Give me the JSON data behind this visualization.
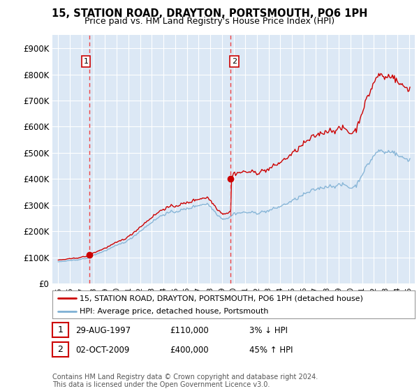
{
  "title": "15, STATION ROAD, DRAYTON, PORTSMOUTH, PO6 1PH",
  "subtitle": "Price paid vs. HM Land Registry's House Price Index (HPI)",
  "ylabel_ticks": [
    "£0",
    "£100K",
    "£200K",
    "£300K",
    "£400K",
    "£500K",
    "£600K",
    "£700K",
    "£800K",
    "£900K"
  ],
  "ytick_values": [
    0,
    100000,
    200000,
    300000,
    400000,
    500000,
    600000,
    700000,
    800000,
    900000
  ],
  "ylim": [
    0,
    950000
  ],
  "xlim_start": 1994.5,
  "xlim_end": 2025.5,
  "line1_color": "#cc0000",
  "line2_color": "#7eb0d4",
  "marker_color": "#cc0000",
  "sale1_x": 1997.66,
  "sale1_y": 110000,
  "sale2_x": 2009.75,
  "sale2_y": 400000,
  "legend_label1": "15, STATION ROAD, DRAYTON, PORTSMOUTH, PO6 1PH (detached house)",
  "legend_label2": "HPI: Average price, detached house, Portsmouth",
  "table_row1": [
    "1",
    "29-AUG-1997",
    "£110,000",
    "3% ↓ HPI"
  ],
  "table_row2": [
    "2",
    "02-OCT-2009",
    "£400,000",
    "45% ↑ HPI"
  ],
  "footer": "Contains HM Land Registry data © Crown copyright and database right 2024.\nThis data is licensed under the Open Government Licence v3.0.",
  "background_color": "#dce8f5",
  "grid_color": "#c0d0e8",
  "vline_color": "#ee4444"
}
